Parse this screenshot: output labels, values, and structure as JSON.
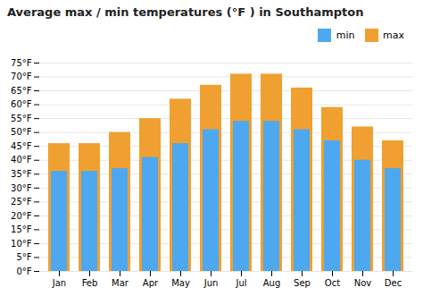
{
  "chart_data": {
    "type": "bar",
    "title": "Average max / min temperatures (°F ) in Southampton",
    "categories": [
      "Jan",
      "Feb",
      "Mar",
      "Apr",
      "May",
      "Jun",
      "Jul",
      "Aug",
      "Sep",
      "Oct",
      "Nov",
      "Dec"
    ],
    "series": [
      {
        "name": "min",
        "color": "#4da8f0",
        "values": [
          36,
          36,
          37,
          41,
          46,
          51,
          54,
          54,
          51,
          47,
          40,
          37
        ]
      },
      {
        "name": "max",
        "color": "#f0a030",
        "values": [
          46,
          46,
          50,
          55,
          62,
          67,
          71,
          71,
          66,
          59,
          52,
          47
        ]
      }
    ],
    "ylim": [
      0,
      75
    ],
    "yticks": [
      {
        "value": 0,
        "label": "0°F"
      },
      {
        "value": 5,
        "label": "5°F"
      },
      {
        "value": 10,
        "label": "10°F"
      },
      {
        "value": 15,
        "label": "15°F"
      },
      {
        "value": 20,
        "label": "20°F"
      },
      {
        "value": 25,
        "label": "25°F"
      },
      {
        "value": 30,
        "label": "30°F"
      },
      {
        "value": 35,
        "label": "35°F"
      },
      {
        "value": 40,
        "label": "40°F"
      },
      {
        "value": 45,
        "label": "45°F"
      },
      {
        "value": 50,
        "label": "50°F"
      },
      {
        "value": 55,
        "label": "55°F"
      },
      {
        "value": 60,
        "label": "60°F"
      },
      {
        "value": 65,
        "label": "65°F"
      },
      {
        "value": 70,
        "label": "70°F"
      },
      {
        "value": 75,
        "label": "75°F"
      }
    ],
    "grid": true,
    "legend": "upper right"
  }
}
